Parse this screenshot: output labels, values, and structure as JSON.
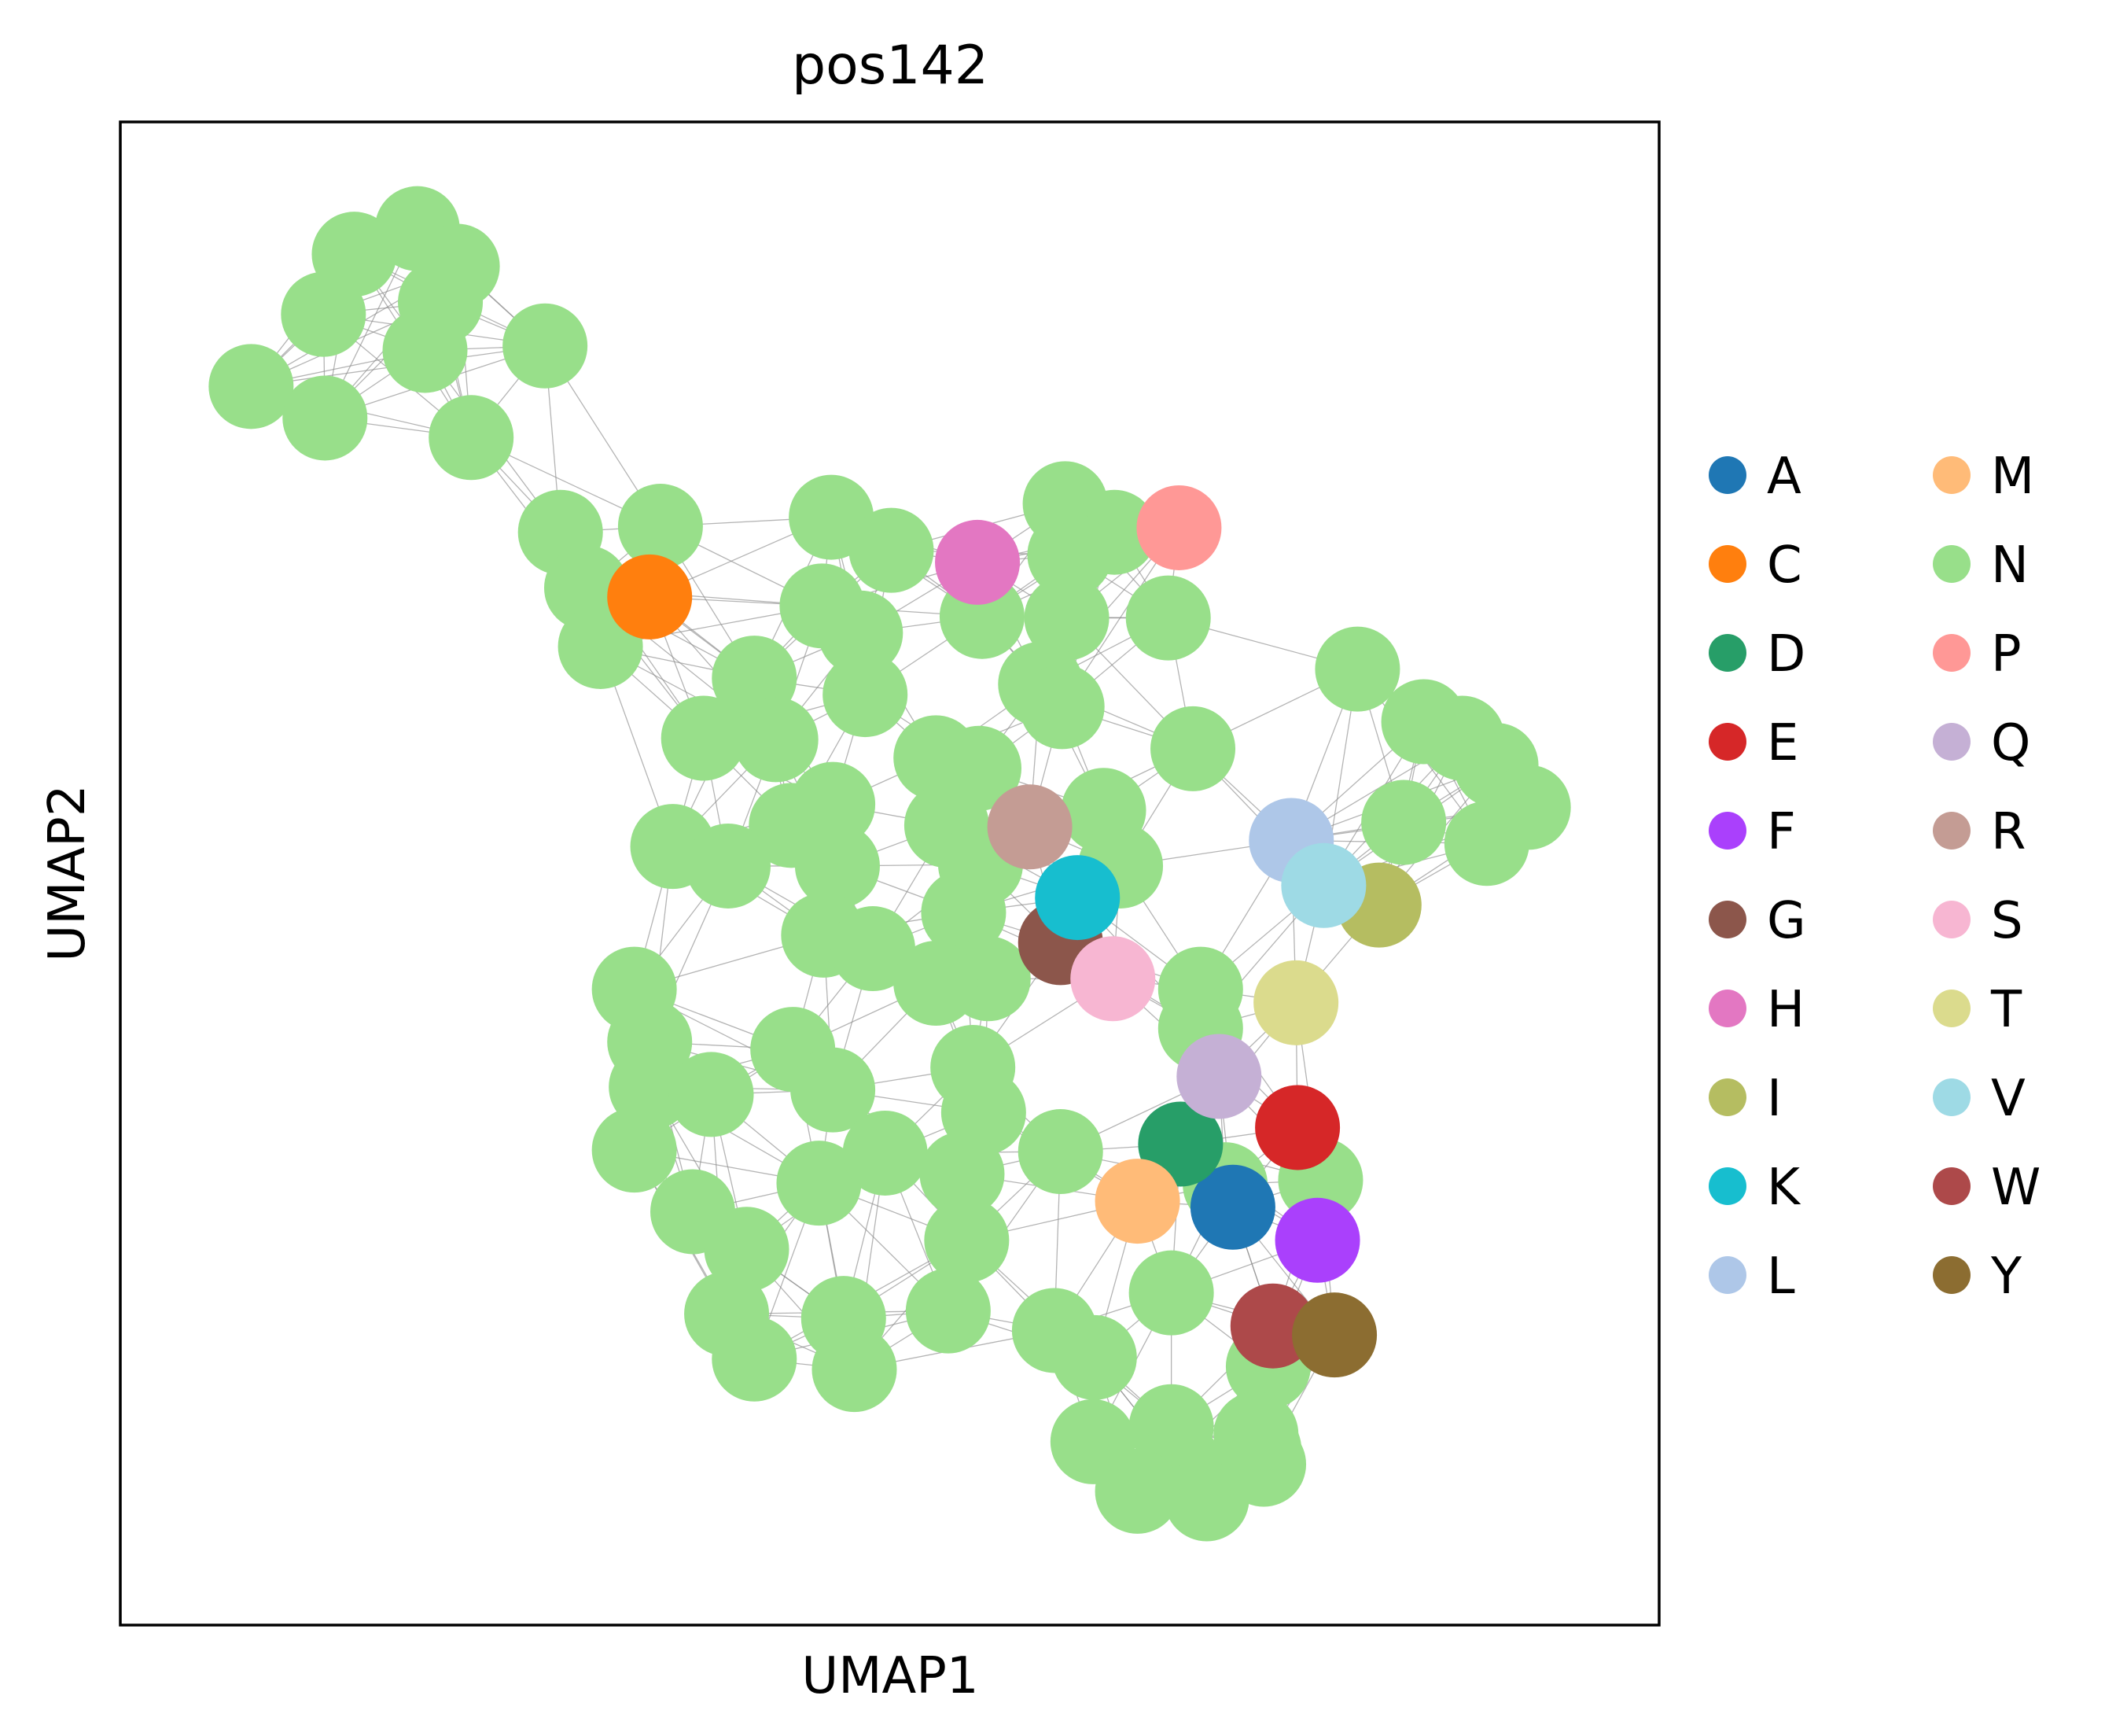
{
  "chart_data": {
    "type": "scatter",
    "subtype": "umap-graph",
    "title": "pos142",
    "xlabel": "UMAP1",
    "ylabel": "UMAP2",
    "xlim": [
      0,
      1
    ],
    "ylim": [
      0,
      1
    ],
    "show_ticks": false,
    "grid": false,
    "legend_position": "right",
    "legend_columns": 2,
    "edge_color": "#8c8c8c",
    "background_category": "N",
    "categories": [
      {
        "label": "A",
        "color": "#1f77b4"
      },
      {
        "label": "C",
        "color": "#ff7f0e"
      },
      {
        "label": "D",
        "color": "#279e68"
      },
      {
        "label": "E",
        "color": "#d62728"
      },
      {
        "label": "F",
        "color": "#aa40fc"
      },
      {
        "label": "G",
        "color": "#8c564b"
      },
      {
        "label": "H",
        "color": "#e377c2"
      },
      {
        "label": "I",
        "color": "#b5bd61"
      },
      {
        "label": "K",
        "color": "#17becf"
      },
      {
        "label": "L",
        "color": "#aec7e8"
      },
      {
        "label": "M",
        "color": "#ffbb78"
      },
      {
        "label": "N",
        "color": "#98df8a"
      },
      {
        "label": "P",
        "color": "#ff9896"
      },
      {
        "label": "Q",
        "color": "#c5b0d5"
      },
      {
        "label": "R",
        "color": "#c49c94"
      },
      {
        "label": "S",
        "color": "#f7b6d2"
      },
      {
        "label": "T",
        "color": "#dbdb8d"
      },
      {
        "label": "V",
        "color": "#9edae5"
      },
      {
        "label": "W",
        "color": "#ad494a"
      },
      {
        "label": "Y",
        "color": "#8c6d31"
      }
    ],
    "points": [
      {
        "x": 0.193,
        "y": 0.929,
        "c": "N"
      },
      {
        "x": 0.152,
        "y": 0.912,
        "c": "N"
      },
      {
        "x": 0.219,
        "y": 0.904,
        "c": "N"
      },
      {
        "x": 0.132,
        "y": 0.872,
        "c": "N"
      },
      {
        "x": 0.208,
        "y": 0.88,
        "c": "N"
      },
      {
        "x": 0.276,
        "y": 0.851,
        "c": "N"
      },
      {
        "x": 0.198,
        "y": 0.848,
        "c": "N"
      },
      {
        "x": 0.085,
        "y": 0.824,
        "c": "N"
      },
      {
        "x": 0.133,
        "y": 0.803,
        "c": "N"
      },
      {
        "x": 0.228,
        "y": 0.79,
        "c": "N"
      },
      {
        "x": 0.286,
        "y": 0.727,
        "c": "N"
      },
      {
        "x": 0.351,
        "y": 0.731,
        "c": "N"
      },
      {
        "x": 0.303,
        "y": 0.69,
        "c": "N"
      },
      {
        "x": 0.312,
        "y": 0.651,
        "c": "N"
      },
      {
        "x": 0.462,
        "y": 0.737,
        "c": "N"
      },
      {
        "x": 0.501,
        "y": 0.715,
        "c": "N"
      },
      {
        "x": 0.614,
        "y": 0.746,
        "c": "N"
      },
      {
        "x": 0.646,
        "y": 0.727,
        "c": "N"
      },
      {
        "x": 0.617,
        "y": 0.712,
        "c": "N"
      },
      {
        "x": 0.56,
        "y": 0.671,
        "c": "N"
      },
      {
        "x": 0.615,
        "y": 0.67,
        "c": "N"
      },
      {
        "x": 0.681,
        "y": 0.67,
        "c": "N"
      },
      {
        "x": 0.456,
        "y": 0.678,
        "c": "N"
      },
      {
        "x": 0.481,
        "y": 0.66,
        "c": "N"
      },
      {
        "x": 0.412,
        "y": 0.63,
        "c": "N"
      },
      {
        "x": 0.484,
        "y": 0.619,
        "c": "N"
      },
      {
        "x": 0.598,
        "y": 0.626,
        "c": "N"
      },
      {
        "x": 0.612,
        "y": 0.611,
        "c": "N"
      },
      {
        "x": 0.379,
        "y": 0.59,
        "c": "N"
      },
      {
        "x": 0.426,
        "y": 0.589,
        "c": "N"
      },
      {
        "x": 0.53,
        "y": 0.577,
        "c": "N"
      },
      {
        "x": 0.558,
        "y": 0.57,
        "c": "N"
      },
      {
        "x": 0.697,
        "y": 0.583,
        "c": "N"
      },
      {
        "x": 0.804,
        "y": 0.636,
        "c": "N"
      },
      {
        "x": 0.847,
        "y": 0.601,
        "c": "N"
      },
      {
        "x": 0.872,
        "y": 0.59,
        "c": "N"
      },
      {
        "x": 0.894,
        "y": 0.572,
        "c": "N"
      },
      {
        "x": 0.915,
        "y": 0.544,
        "c": "N"
      },
      {
        "x": 0.888,
        "y": 0.52,
        "c": "N"
      },
      {
        "x": 0.834,
        "y": 0.534,
        "c": "N"
      },
      {
        "x": 0.463,
        "y": 0.546,
        "c": "N"
      },
      {
        "x": 0.436,
        "y": 0.532,
        "c": "N"
      },
      {
        "x": 0.359,
        "y": 0.518,
        "c": "N"
      },
      {
        "x": 0.395,
        "y": 0.505,
        "c": "N"
      },
      {
        "x": 0.466,
        "y": 0.505,
        "c": "N"
      },
      {
        "x": 0.537,
        "y": 0.532,
        "c": "N"
      },
      {
        "x": 0.559,
        "y": 0.506,
        "c": "N"
      },
      {
        "x": 0.639,
        "y": 0.542,
        "c": "N"
      },
      {
        "x": 0.65,
        "y": 0.505,
        "c": "N"
      },
      {
        "x": 0.457,
        "y": 0.459,
        "c": "N"
      },
      {
        "x": 0.489,
        "y": 0.45,
        "c": "N"
      },
      {
        "x": 0.548,
        "y": 0.474,
        "c": "N"
      },
      {
        "x": 0.564,
        "y": 0.43,
        "c": "N"
      },
      {
        "x": 0.53,
        "y": 0.427,
        "c": "N"
      },
      {
        "x": 0.702,
        "y": 0.423,
        "c": "N"
      },
      {
        "x": 0.702,
        "y": 0.397,
        "c": "N"
      },
      {
        "x": 0.334,
        "y": 0.423,
        "c": "N"
      },
      {
        "x": 0.344,
        "y": 0.388,
        "c": "N"
      },
      {
        "x": 0.345,
        "y": 0.358,
        "c": "N"
      },
      {
        "x": 0.384,
        "y": 0.353,
        "c": "N"
      },
      {
        "x": 0.437,
        "y": 0.383,
        "c": "N"
      },
      {
        "x": 0.463,
        "y": 0.356,
        "c": "N"
      },
      {
        "x": 0.554,
        "y": 0.371,
        "c": "N"
      },
      {
        "x": 0.561,
        "y": 0.341,
        "c": "N"
      },
      {
        "x": 0.334,
        "y": 0.316,
        "c": "N"
      },
      {
        "x": 0.372,
        "y": 0.275,
        "c": "N"
      },
      {
        "x": 0.407,
        "y": 0.25,
        "c": "N"
      },
      {
        "x": 0.454,
        "y": 0.294,
        "c": "N"
      },
      {
        "x": 0.497,
        "y": 0.314,
        "c": "N"
      },
      {
        "x": 0.547,
        "y": 0.3,
        "c": "N"
      },
      {
        "x": 0.55,
        "y": 0.256,
        "c": "N"
      },
      {
        "x": 0.611,
        "y": 0.315,
        "c": "N"
      },
      {
        "x": 0.718,
        "y": 0.293,
        "c": "N"
      },
      {
        "x": 0.78,
        "y": 0.296,
        "c": "N"
      },
      {
        "x": 0.394,
        "y": 0.207,
        "c": "N"
      },
      {
        "x": 0.412,
        "y": 0.177,
        "c": "N"
      },
      {
        "x": 0.47,
        "y": 0.204,
        "c": "N"
      },
      {
        "x": 0.538,
        "y": 0.209,
        "c": "N"
      },
      {
        "x": 0.477,
        "y": 0.17,
        "c": "N"
      },
      {
        "x": 0.607,
        "y": 0.196,
        "c": "N"
      },
      {
        "x": 0.633,
        "y": 0.178,
        "c": "N"
      },
      {
        "x": 0.683,
        "y": 0.221,
        "c": "N"
      },
      {
        "x": 0.746,
        "y": 0.172,
        "c": "N"
      },
      {
        "x": 0.632,
        "y": 0.122,
        "c": "N"
      },
      {
        "x": 0.683,
        "y": 0.132,
        "c": "N"
      },
      {
        "x": 0.688,
        "y": 0.107,
        "c": "N"
      },
      {
        "x": 0.706,
        "y": 0.084,
        "c": "N"
      },
      {
        "x": 0.661,
        "y": 0.089,
        "c": "N"
      },
      {
        "x": 0.74,
        "y": 0.117,
        "c": "N"
      },
      {
        "x": 0.738,
        "y": 0.127,
        "c": "N"
      },
      {
        "x": 0.743,
        "y": 0.107,
        "c": "N"
      },
      {
        "x": 0.723,
        "y": 0.278,
        "c": "A"
      },
      {
        "x": 0.344,
        "y": 0.684,
        "c": "C"
      },
      {
        "x": 0.689,
        "y": 0.32,
        "c": "D"
      },
      {
        "x": 0.765,
        "y": 0.331,
        "c": "E"
      },
      {
        "x": 0.778,
        "y": 0.256,
        "c": "F"
      },
      {
        "x": 0.611,
        "y": 0.454,
        "c": "G"
      },
      {
        "x": 0.557,
        "y": 0.707,
        "c": "H"
      },
      {
        "x": 0.818,
        "y": 0.479,
        "c": "I"
      },
      {
        "x": 0.622,
        "y": 0.484,
        "c": "K"
      },
      {
        "x": 0.761,
        "y": 0.522,
        "c": "L"
      },
      {
        "x": 0.661,
        "y": 0.282,
        "c": "M"
      },
      {
        "x": 0.688,
        "y": 0.73,
        "c": "P"
      },
      {
        "x": 0.714,
        "y": 0.365,
        "c": "Q"
      },
      {
        "x": 0.591,
        "y": 0.531,
        "c": "R"
      },
      {
        "x": 0.645,
        "y": 0.43,
        "c": "S"
      },
      {
        "x": 0.764,
        "y": 0.414,
        "c": "T"
      },
      {
        "x": 0.782,
        "y": 0.492,
        "c": "V"
      },
      {
        "x": 0.749,
        "y": 0.199,
        "c": "W"
      },
      {
        "x": 0.789,
        "y": 0.193,
        "c": "Y"
      }
    ]
  }
}
